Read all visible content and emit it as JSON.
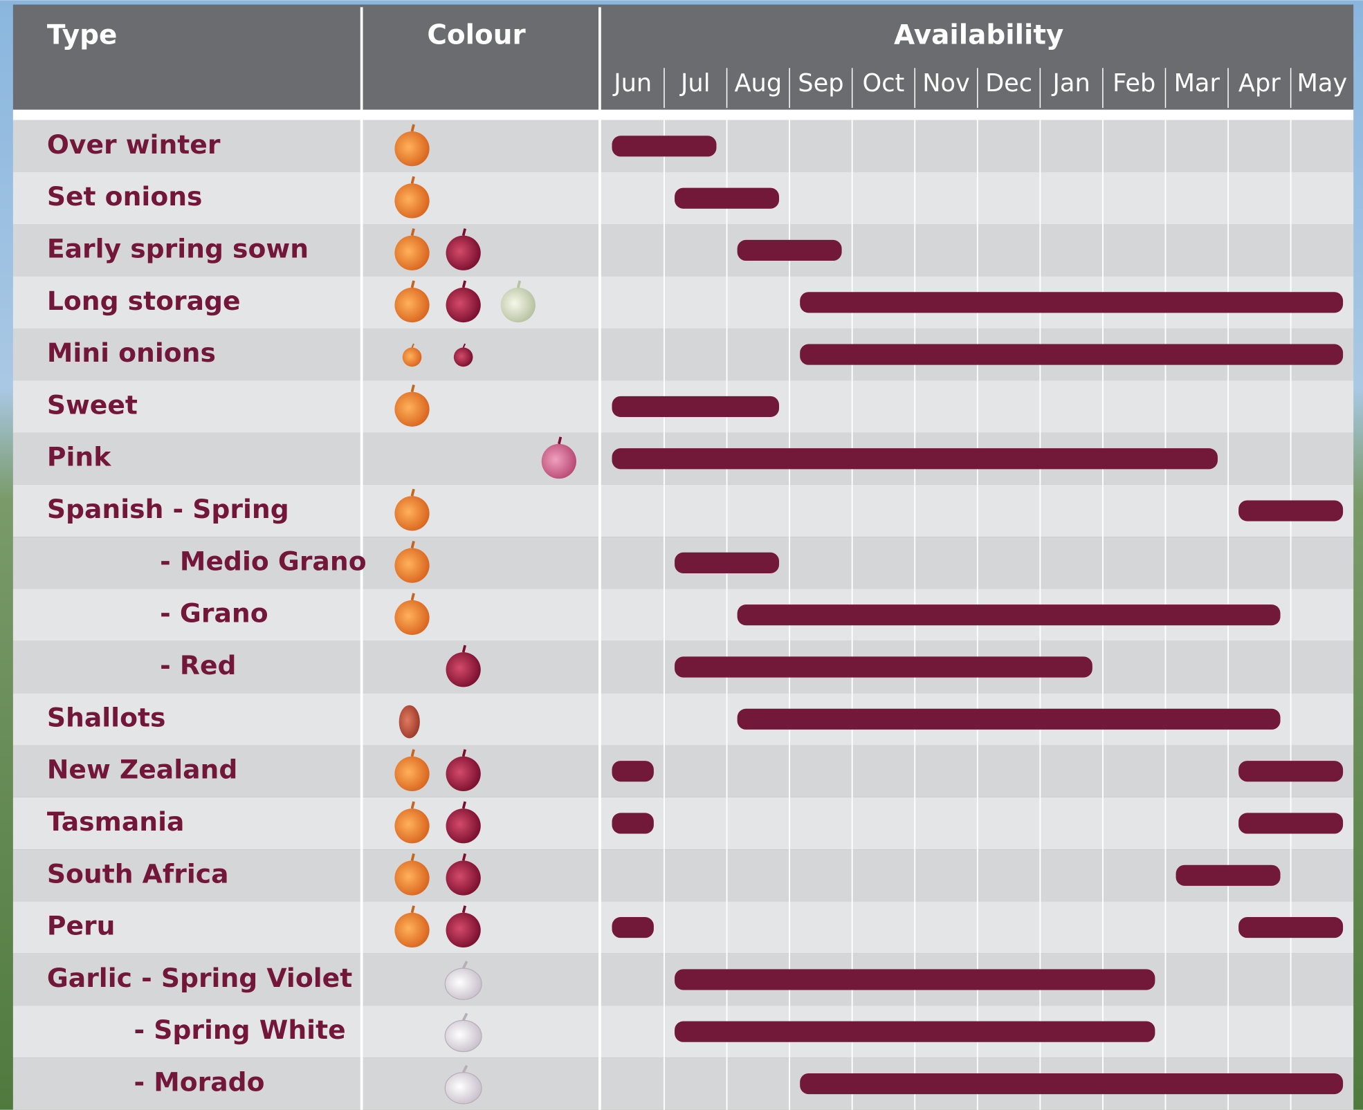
{
  "header": {
    "type": "Type",
    "colour": "Colour",
    "availability": "Availability",
    "months": [
      "Jun",
      "Jul",
      "Aug",
      "Sep",
      "Oct",
      "Nov",
      "Dec",
      "Jan",
      "Feb",
      "Mar",
      "Apr",
      "May"
    ]
  },
  "rows": [
    {
      "label": "Over winter",
      "availability": [
        [
          0,
          2
        ]
      ]
    },
    {
      "label": "Set onions",
      "availability": [
        [
          1,
          3
        ]
      ]
    },
    {
      "label": "Early spring sown",
      "availability": [
        [
          2,
          4
        ]
      ]
    },
    {
      "label": "Long storage",
      "availability": [
        [
          3,
          12
        ]
      ]
    },
    {
      "label": "Mini onions",
      "availability": [
        [
          3,
          12
        ]
      ]
    },
    {
      "label": "Sweet",
      "availability": [
        [
          0,
          3
        ]
      ]
    },
    {
      "label": "Pink",
      "availability": [
        [
          0,
          10
        ]
      ]
    },
    {
      "label": "Spanish - Spring",
      "availability": [
        [
          10,
          12
        ]
      ]
    },
    {
      "label": "- Medio Grano",
      "availability": [
        [
          1,
          3
        ]
      ]
    },
    {
      "label": "- Grano",
      "availability": [
        [
          2,
          11
        ]
      ]
    },
    {
      "label": "- Red",
      "availability": [
        [
          1,
          8
        ]
      ]
    },
    {
      "label": "Shallots",
      "availability": [
        [
          2,
          11
        ]
      ]
    },
    {
      "label": "New Zealand",
      "availability": [
        [
          0,
          1
        ],
        [
          10,
          12
        ]
      ]
    },
    {
      "label": "Tasmania",
      "availability": [
        [
          0,
          1
        ],
        [
          10,
          12
        ]
      ]
    },
    {
      "label": "South Africa",
      "availability": [
        [
          9,
          11
        ]
      ]
    },
    {
      "label": "Peru",
      "availability": [
        [
          0,
          1
        ],
        [
          10,
          12
        ]
      ]
    },
    {
      "label": "Garlic - Spring Violet",
      "availability": [
        [
          1,
          9
        ]
      ]
    },
    {
      "label": "- Spring White",
      "availability": [
        [
          1,
          9
        ]
      ]
    },
    {
      "label": "- Morado",
      "availability": [
        [
          3,
          12
        ]
      ]
    }
  ]
}
